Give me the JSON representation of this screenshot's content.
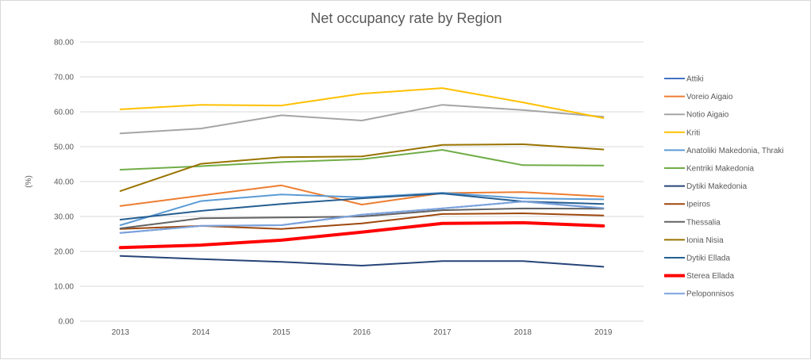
{
  "chart_data": {
    "type": "line",
    "title": "Net occupancy rate by Region",
    "xlabel": "",
    "ylabel": "(%)",
    "ylim": [
      0,
      80
    ],
    "yticks": [
      "0.00",
      "10.00",
      "20.00",
      "30.00",
      "40.00",
      "50.00",
      "60.00",
      "70.00",
      "80.00"
    ],
    "grid": true,
    "legend_position": "right",
    "categories": [
      "2013",
      "2014",
      "2015",
      "2016",
      "2017",
      "2018",
      "2019"
    ],
    "series": [
      {
        "name": "Attiki",
        "color": "#4472C4",
        "values": [
          25.3,
          27.3,
          27.5,
          30.5,
          32.3,
          34.3,
          32.3
        ]
      },
      {
        "name": "Voreio Aigaio",
        "color": "#ED7D31",
        "values": [
          33.0,
          36.0,
          38.9,
          33.4,
          36.7,
          37.0,
          35.7
        ]
      },
      {
        "name": "Notio Aigaio",
        "color": "#A5A5A5",
        "values": [
          53.8,
          55.2,
          59.0,
          57.5,
          62.0,
          60.5,
          58.6
        ]
      },
      {
        "name": "Kriti",
        "color": "#FFC000",
        "values": [
          60.7,
          62.0,
          61.8,
          65.2,
          66.8,
          62.7,
          58.2
        ]
      },
      {
        "name": "Anatoliki Makedonia, Thraki",
        "color": "#5B9BD5",
        "values": [
          27.5,
          34.4,
          36.3,
          35.5,
          36.8,
          35.2,
          34.9
        ]
      },
      {
        "name": "Kentriki Makedonia",
        "color": "#70AD47",
        "values": [
          43.4,
          44.4,
          45.6,
          46.4,
          49.1,
          44.7,
          44.6
        ]
      },
      {
        "name": "Dytiki Makedonia",
        "color": "#264478",
        "values": [
          18.7,
          17.8,
          17.0,
          15.9,
          17.2,
          17.2,
          15.6
        ]
      },
      {
        "name": "Ipeiros",
        "color": "#9E480E",
        "values": [
          26.4,
          27.3,
          26.4,
          28.0,
          30.7,
          30.9,
          30.3
        ]
      },
      {
        "name": "Thessalia",
        "color": "#636363",
        "values": [
          26.6,
          29.5,
          29.7,
          30.0,
          31.8,
          32.3,
          32.2
        ]
      },
      {
        "name": "Ionia Nisia",
        "color": "#997300",
        "values": [
          37.3,
          45.1,
          47.0,
          47.2,
          50.5,
          50.7,
          49.2
        ]
      },
      {
        "name": "Dytiki Ellada",
        "color": "#255E91",
        "values": [
          29.1,
          31.6,
          33.6,
          35.2,
          36.6,
          34.3,
          33.6
        ]
      },
      {
        "name": "Sterea Ellada",
        "color": "#FF0000",
        "values": [
          21.1,
          21.8,
          23.2,
          25.5,
          28.0,
          28.2,
          27.3
        ],
        "bold": true
      },
      {
        "name": "Peloponnisos",
        "color": "#7CA3DD",
        "values": [
          25.3,
          27.3,
          27.5,
          30.5,
          32.3,
          34.3,
          32.4
        ]
      }
    ]
  }
}
